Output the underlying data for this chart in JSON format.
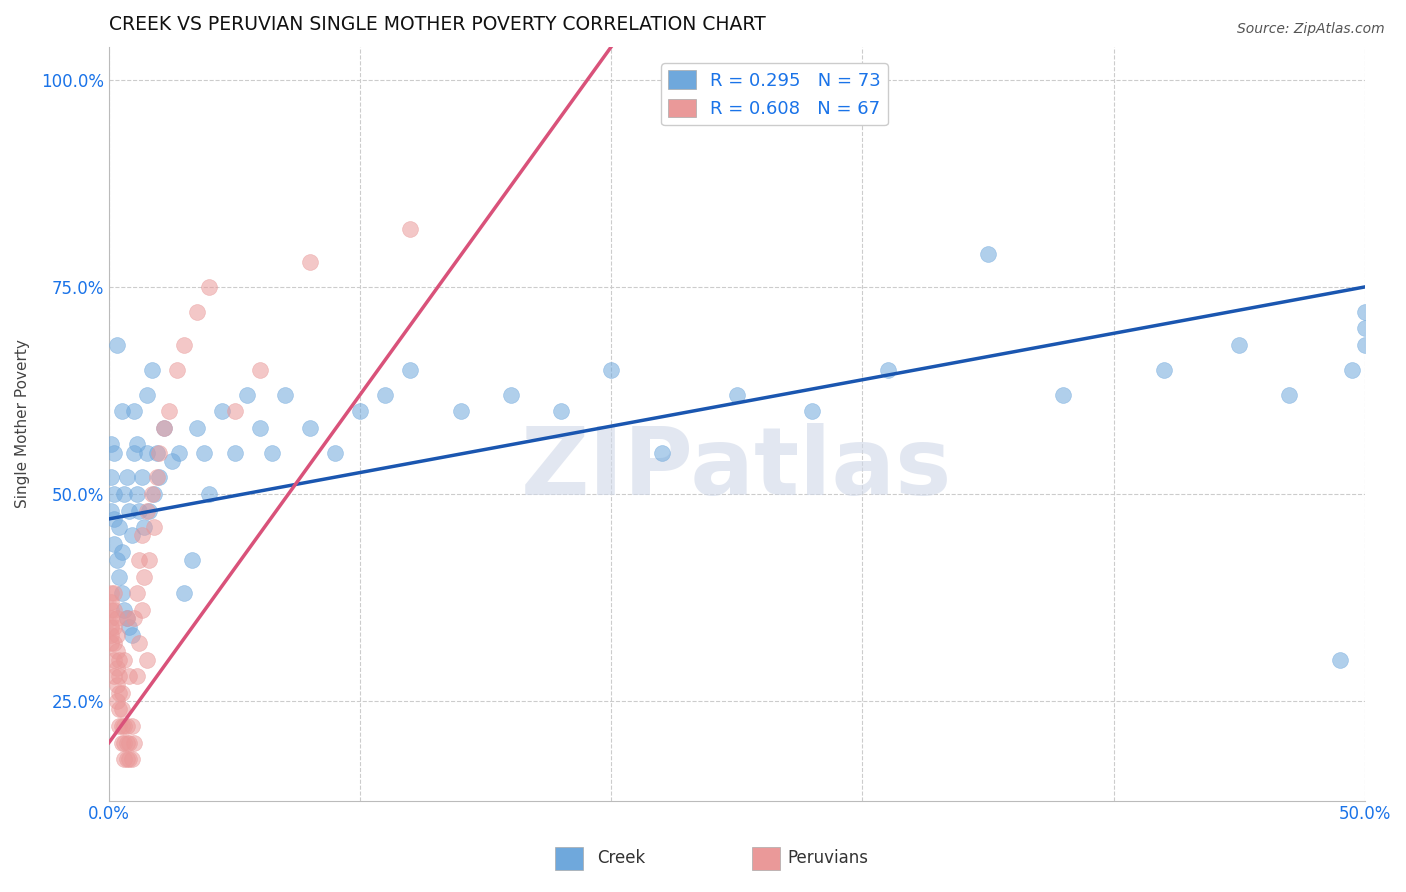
{
  "title": "CREEK VS PERUVIAN SINGLE MOTHER POVERTY CORRELATION CHART",
  "source": "Source: ZipAtlas.com",
  "ylabel": "Single Mother Poverty",
  "xlim": [
    0.0,
    0.5
  ],
  "ylim": [
    0.13,
    1.04
  ],
  "xticks": [
    0.0,
    0.1,
    0.2,
    0.3,
    0.4,
    0.5
  ],
  "xticklabels": [
    "0.0%",
    "",
    "",
    "",
    "",
    "50.0%"
  ],
  "yticks": [
    0.25,
    0.5,
    0.75,
    1.0
  ],
  "yticklabels": [
    "25.0%",
    "50.0%",
    "75.0%",
    "100.0%"
  ],
  "creek_color": "#6fa8dc",
  "peruvian_color": "#ea9999",
  "creek_line_color": "#1a56b0",
  "peruvian_line_color": "#d9527a",
  "creek_R": 0.295,
  "creek_N": 73,
  "peruvian_R": 0.608,
  "peruvian_N": 67,
  "watermark": "ZIPatlas",
  "creek_line_x0": 0.0,
  "creek_line_y0": 0.47,
  "creek_line_x1": 0.5,
  "creek_line_y1": 0.75,
  "peru_line_x0": 0.0,
  "peru_line_y0": 0.2,
  "peru_line_x1": 0.2,
  "peru_line_y1": 1.04,
  "creek_scatter_x": [
    0.001,
    0.001,
    0.001,
    0.002,
    0.002,
    0.002,
    0.002,
    0.003,
    0.003,
    0.004,
    0.004,
    0.005,
    0.005,
    0.005,
    0.006,
    0.006,
    0.007,
    0.007,
    0.008,
    0.008,
    0.009,
    0.009,
    0.01,
    0.01,
    0.011,
    0.011,
    0.012,
    0.013,
    0.014,
    0.015,
    0.015,
    0.016,
    0.017,
    0.018,
    0.019,
    0.02,
    0.022,
    0.025,
    0.028,
    0.03,
    0.033,
    0.035,
    0.038,
    0.04,
    0.045,
    0.05,
    0.055,
    0.06,
    0.065,
    0.07,
    0.08,
    0.09,
    0.1,
    0.11,
    0.12,
    0.14,
    0.16,
    0.18,
    0.2,
    0.22,
    0.25,
    0.28,
    0.31,
    0.35,
    0.38,
    0.42,
    0.45,
    0.47,
    0.49,
    0.495,
    0.5,
    0.5,
    0.5
  ],
  "creek_scatter_y": [
    0.48,
    0.52,
    0.56,
    0.44,
    0.47,
    0.5,
    0.55,
    0.42,
    0.68,
    0.4,
    0.46,
    0.38,
    0.43,
    0.6,
    0.36,
    0.5,
    0.35,
    0.52,
    0.34,
    0.48,
    0.33,
    0.45,
    0.55,
    0.6,
    0.5,
    0.56,
    0.48,
    0.52,
    0.46,
    0.55,
    0.62,
    0.48,
    0.65,
    0.5,
    0.55,
    0.52,
    0.58,
    0.54,
    0.55,
    0.38,
    0.42,
    0.58,
    0.55,
    0.5,
    0.6,
    0.55,
    0.62,
    0.58,
    0.55,
    0.62,
    0.58,
    0.55,
    0.6,
    0.62,
    0.65,
    0.6,
    0.62,
    0.6,
    0.65,
    0.55,
    0.62,
    0.6,
    0.65,
    0.79,
    0.62,
    0.65,
    0.68,
    0.62,
    0.3,
    0.65,
    0.68,
    0.7,
    0.72
  ],
  "peruvian_scatter_x": [
    0.001,
    0.001,
    0.001,
    0.001,
    0.001,
    0.001,
    0.001,
    0.002,
    0.002,
    0.002,
    0.002,
    0.002,
    0.002,
    0.003,
    0.003,
    0.003,
    0.003,
    0.003,
    0.003,
    0.004,
    0.004,
    0.004,
    0.004,
    0.004,
    0.005,
    0.005,
    0.005,
    0.005,
    0.006,
    0.006,
    0.006,
    0.006,
    0.007,
    0.007,
    0.007,
    0.007,
    0.008,
    0.008,
    0.008,
    0.009,
    0.009,
    0.01,
    0.01,
    0.011,
    0.011,
    0.012,
    0.012,
    0.013,
    0.013,
    0.014,
    0.015,
    0.015,
    0.016,
    0.017,
    0.018,
    0.019,
    0.02,
    0.022,
    0.024,
    0.027,
    0.03,
    0.035,
    0.04,
    0.05,
    0.06,
    0.08,
    0.12
  ],
  "peruvian_scatter_y": [
    0.32,
    0.34,
    0.36,
    0.38,
    0.33,
    0.35,
    0.37,
    0.28,
    0.3,
    0.32,
    0.34,
    0.36,
    0.38,
    0.25,
    0.27,
    0.29,
    0.31,
    0.33,
    0.35,
    0.22,
    0.24,
    0.26,
    0.28,
    0.3,
    0.2,
    0.22,
    0.24,
    0.26,
    0.18,
    0.2,
    0.22,
    0.3,
    0.18,
    0.2,
    0.22,
    0.35,
    0.18,
    0.2,
    0.28,
    0.18,
    0.22,
    0.2,
    0.35,
    0.28,
    0.38,
    0.32,
    0.42,
    0.36,
    0.45,
    0.4,
    0.3,
    0.48,
    0.42,
    0.5,
    0.46,
    0.52,
    0.55,
    0.58,
    0.6,
    0.65,
    0.68,
    0.72,
    0.75,
    0.6,
    0.65,
    0.78,
    0.82
  ]
}
